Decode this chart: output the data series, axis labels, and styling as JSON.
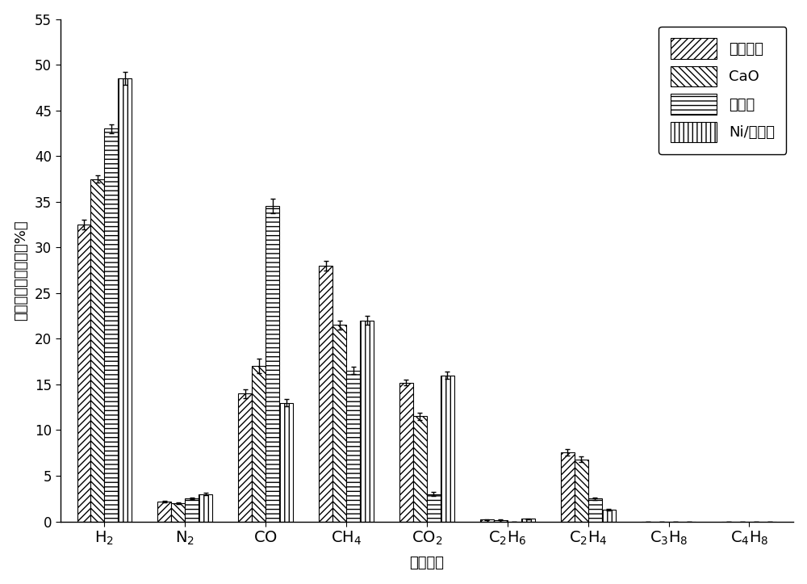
{
  "categories": [
    "H₂",
    "N₂",
    "CO",
    "CH₄",
    "CO₂",
    "C₂H₆",
    "C₂H₄",
    "C₃H₈",
    "C₄H₈"
  ],
  "series": [
    {
      "name": "无催化剂",
      "values": [
        32.5,
        2.2,
        14.0,
        28.0,
        15.2,
        0.2,
        7.6,
        0.0,
        0.0
      ],
      "errors": [
        0.5,
        0.1,
        0.5,
        0.5,
        0.3,
        0.05,
        0.35,
        0.0,
        0.0
      ],
      "hatch": "////",
      "facecolor": "white",
      "edgecolor": "black"
    },
    {
      "name": "CaO",
      "values": [
        37.5,
        2.0,
        17.0,
        21.5,
        11.5,
        0.15,
        6.8,
        0.0,
        0.0
      ],
      "errors": [
        0.4,
        0.1,
        0.8,
        0.5,
        0.4,
        0.05,
        0.3,
        0.0,
        0.0
      ],
      "hatch": "\\\\\\\\",
      "facecolor": "white",
      "edgecolor": "black"
    },
    {
      "name": "分子筛",
      "values": [
        43.0,
        2.5,
        34.5,
        16.5,
        3.0,
        0.0,
        2.5,
        0.0,
        0.0
      ],
      "errors": [
        0.5,
        0.1,
        0.8,
        0.4,
        0.2,
        0.0,
        0.15,
        0.0,
        0.0
      ],
      "hatch": "---",
      "facecolor": "white",
      "edgecolor": "black"
    },
    {
      "name": "Ni/分子筛",
      "values": [
        48.5,
        3.0,
        13.0,
        22.0,
        16.0,
        0.3,
        1.3,
        0.0,
        0.0
      ],
      "errors": [
        0.7,
        0.1,
        0.4,
        0.5,
        0.4,
        0.05,
        0.1,
        0.0,
        0.0
      ],
      "hatch": "|||",
      "facecolor": "white",
      "edgecolor": "black"
    }
  ],
  "ylabel": "气体体积百分含量（%）",
  "xlabel": "气体组分",
  "ylim": [
    0,
    55
  ],
  "yticks": [
    0,
    5,
    10,
    15,
    20,
    25,
    30,
    35,
    40,
    45,
    50,
    55
  ],
  "bar_width": 0.17,
  "figsize": [
    10.0,
    7.23
  ],
  "dpi": 100
}
